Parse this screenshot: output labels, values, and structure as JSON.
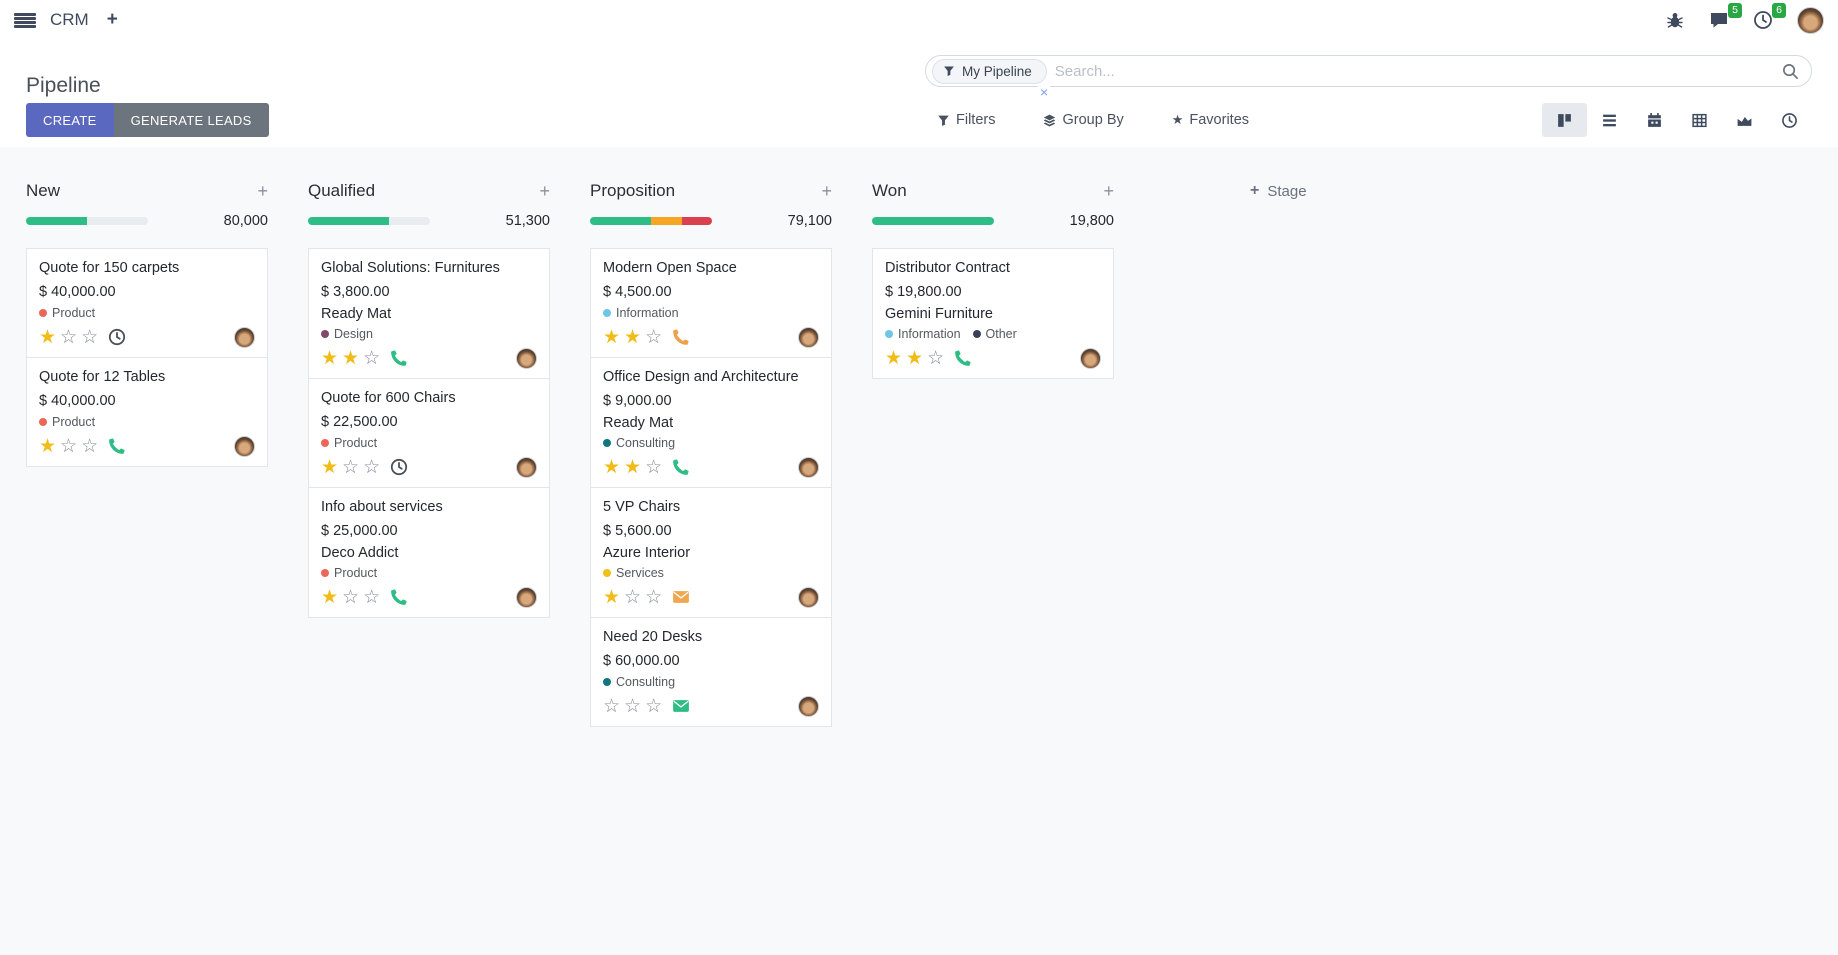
{
  "navbar": {
    "app_name": "CRM",
    "systray": {
      "messages_badge": "5",
      "activities_badge": "6"
    }
  },
  "control_panel": {
    "title": "Pipeline",
    "create_label": "CREATE",
    "generate_leads_label": "GENERATE LEADS",
    "search": {
      "facet": "My Pipeline",
      "facet_remove": "×",
      "placeholder": "Search..."
    },
    "filters_label": "Filters",
    "group_by_label": "Group By",
    "favorites_label": "Favorites",
    "active_view": "kanban"
  },
  "icons": {
    "plus": "+",
    "star_filled": "★",
    "star_empty": "☆",
    "favorites_star": "★"
  },
  "colors": {
    "progress_green": "#2ebd85",
    "progress_orange": "#f5a623",
    "progress_red": "#d9414f",
    "star_filled": "#f0bc17",
    "badge_green": "#28a745",
    "primary_button": "#5b68c0",
    "secondary_button": "#6c757d"
  },
  "board": {
    "add_stage_label": "Stage",
    "columns": [
      {
        "name": "New",
        "count": "80,000",
        "progress": [
          {
            "color": "#2ebd85",
            "pct": 50
          }
        ],
        "cards": [
          {
            "title": "Quote for 150 carpets",
            "amount": "$ 40,000.00",
            "partner": null,
            "tags": [
              {
                "label": "Product",
                "color": "#ea6759"
              }
            ],
            "stars": 1,
            "activity": {
              "type": "clock",
              "color": "#495057"
            }
          },
          {
            "title": "Quote for 12 Tables",
            "amount": "$ 40,000.00",
            "partner": null,
            "tags": [
              {
                "label": "Product",
                "color": "#ea6759"
              }
            ],
            "stars": 1,
            "activity": {
              "type": "phone",
              "color": "#2ebd85"
            }
          }
        ]
      },
      {
        "name": "Qualified",
        "count": "51,300",
        "progress": [
          {
            "color": "#2ebd85",
            "pct": 66
          }
        ],
        "cards": [
          {
            "title": "Global Solutions: Furnitures",
            "amount": "$ 3,800.00",
            "partner": "Ready Mat",
            "tags": [
              {
                "label": "Design",
                "color": "#814968"
              }
            ],
            "stars": 2,
            "activity": {
              "type": "phone",
              "color": "#2ebd85"
            }
          },
          {
            "title": "Quote for 600 Chairs",
            "amount": "$ 22,500.00",
            "partner": null,
            "tags": [
              {
                "label": "Product",
                "color": "#ea6759"
              }
            ],
            "stars": 1,
            "activity": {
              "type": "clock",
              "color": "#495057"
            }
          },
          {
            "title": "Info about services",
            "amount": "$ 25,000.00",
            "partner": "Deco Addict",
            "tags": [
              {
                "label": "Product",
                "color": "#ea6759"
              }
            ],
            "stars": 1,
            "activity": {
              "type": "phone",
              "color": "#2ebd85"
            }
          }
        ]
      },
      {
        "name": "Proposition",
        "count": "79,100",
        "progress": [
          {
            "color": "#2ebd85",
            "pct": 50
          },
          {
            "color": "#f5a623",
            "pct": 25
          },
          {
            "color": "#d9414f",
            "pct": 25
          }
        ],
        "cards": [
          {
            "title": "Modern Open Space",
            "amount": "$ 4,500.00",
            "partner": null,
            "tags": [
              {
                "label": "Information",
                "color": "#6fc4e8"
              }
            ],
            "stars": 2,
            "activity": {
              "type": "phone",
              "color": "#eda14c"
            }
          },
          {
            "title": "Office Design and Architecture",
            "amount": "$ 9,000.00",
            "partner": "Ready Mat",
            "tags": [
              {
                "label": "Consulting",
                "color": "#12747d"
              }
            ],
            "stars": 2,
            "activity": {
              "type": "phone",
              "color": "#2ebd85"
            }
          },
          {
            "title": "5 VP Chairs",
            "amount": "$ 5,600.00",
            "partner": "Azure Interior",
            "tags": [
              {
                "label": "Services",
                "color": "#efc018"
              }
            ],
            "stars": 1,
            "activity": {
              "type": "envelope",
              "color": "#efa64f"
            }
          },
          {
            "title": "Need 20 Desks",
            "amount": "$ 60,000.00",
            "partner": null,
            "tags": [
              {
                "label": "Consulting",
                "color": "#12747d"
              }
            ],
            "stars": 0,
            "activity": {
              "type": "envelope",
              "color": "#2ebd85"
            }
          }
        ]
      },
      {
        "name": "Won",
        "count": "19,800",
        "progress": [
          {
            "color": "#2ebd85",
            "pct": 100
          }
        ],
        "cards": [
          {
            "title": "Distributor Contract",
            "amount": "$ 19,800.00",
            "partner": "Gemini Furniture",
            "tags": [
              {
                "label": "Information",
                "color": "#6fc4e8"
              },
              {
                "label": "Other",
                "color": "#3a4157"
              }
            ],
            "stars": 2,
            "activity": {
              "type": "phone",
              "color": "#2ebd85"
            }
          }
        ]
      }
    ]
  }
}
